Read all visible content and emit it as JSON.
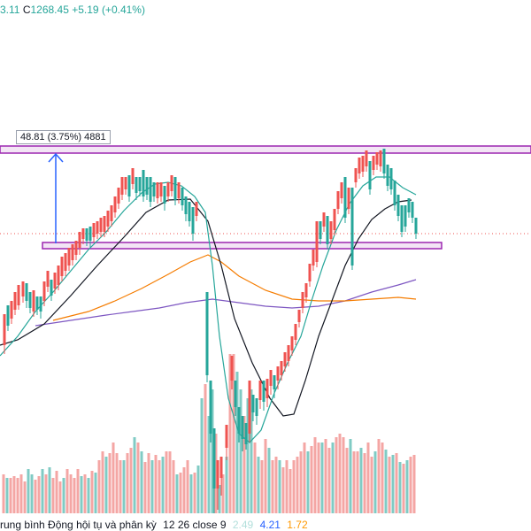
{
  "legend": {
    "open_fragment": "3.11",
    "close_label": "C",
    "close_value": "1268.45",
    "change": "+5.19",
    "change_pct": "(+0.41%)"
  },
  "measure_tooltip": "48.81 (3.75%) 4881",
  "indicator": {
    "name": "rung bình Động hội tụ và phân kỳ",
    "params": "12 26 close 9",
    "values": [
      "2.49",
      "4.21",
      "1.72"
    ],
    "colors": [
      "#b2dfdb",
      "#2962ff",
      "#ff9800"
    ]
  },
  "colors": {
    "up": "#26a69a",
    "down": "#ef5350",
    "zone_border": "#9c27b0",
    "zone_fill": "#f3e5f5",
    "arrow": "#2962ff",
    "ma_fast": "#26a69a",
    "ma_mid": "#131722",
    "ma_long_orange": "#f57c00",
    "ma_long_purple": "#7e57c2"
  },
  "chart_data": {
    "type": "candlestick",
    "candles": [
      [
        5,
        368,
        355,
        390,
        400,
        0
      ],
      [
        9,
        360,
        345,
        368,
        374,
        1
      ],
      [
        13,
        350,
        340,
        360,
        366,
        0
      ],
      [
        17,
        345,
        330,
        350,
        356,
        0
      ],
      [
        21,
        335,
        322,
        345,
        350,
        0
      ],
      [
        26,
        328,
        318,
        335,
        342,
        0
      ],
      [
        30,
        332,
        320,
        340,
        348,
        1
      ],
      [
        34,
        345,
        330,
        348,
        354,
        1
      ],
      [
        38,
        338,
        328,
        352,
        358,
        0
      ],
      [
        42,
        342,
        335,
        350,
        356,
        1
      ],
      [
        46,
        346,
        335,
        352,
        360,
        1
      ],
      [
        50,
        334,
        318,
        340,
        346,
        0
      ],
      [
        54,
        318,
        306,
        324,
        330,
        0
      ],
      [
        58,
        330,
        316,
        334,
        340,
        1
      ],
      [
        62,
        320,
        308,
        326,
        332,
        0
      ],
      [
        66,
        318,
        300,
        322,
        328,
        0
      ],
      [
        70,
        306,
        290,
        312,
        318,
        0
      ],
      [
        74,
        302,
        286,
        306,
        312,
        0
      ],
      [
        78,
        294,
        280,
        300,
        306,
        0
      ],
      [
        82,
        290,
        276,
        294,
        300,
        0
      ],
      [
        86,
        286,
        272,
        288,
        294,
        0
      ],
      [
        90,
        276,
        262,
        280,
        288,
        0
      ],
      [
        94,
        264,
        258,
        270,
        276,
        0
      ],
      [
        98,
        268,
        258,
        272,
        278,
        1
      ],
      [
        102,
        266,
        256,
        272,
        280,
        1
      ],
      [
        106,
        262,
        252,
        268,
        274,
        0
      ],
      [
        110,
        260,
        250,
        264,
        270,
        0
      ],
      [
        114,
        258,
        246,
        262,
        268,
        0
      ],
      [
        118,
        256,
        244,
        262,
        268,
        0
      ],
      [
        122,
        252,
        238,
        256,
        262,
        0
      ],
      [
        126,
        246,
        232,
        250,
        256,
        0
      ],
      [
        130,
        234,
        222,
        240,
        246,
        0
      ],
      [
        134,
        226,
        212,
        230,
        236,
        0
      ],
      [
        138,
        214,
        200,
        220,
        226,
        0
      ],
      [
        142,
        210,
        200,
        214,
        220,
        0
      ],
      [
        146,
        210,
        198,
        222,
        228,
        1
      ],
      [
        150,
        204,
        190,
        208,
        214,
        0
      ],
      [
        154,
        214,
        200,
        218,
        226,
        1
      ],
      [
        158,
        208,
        200,
        216,
        222,
        1
      ],
      [
        162,
        204,
        192,
        222,
        228,
        1
      ],
      [
        166,
        214,
        200,
        220,
        226,
        1
      ],
      [
        170,
        210,
        200,
        228,
        234,
        1
      ],
      [
        174,
        214,
        206,
        222,
        228,
        1
      ],
      [
        178,
        220,
        206,
        224,
        230,
        0
      ],
      [
        182,
        216,
        206,
        222,
        228,
        0
      ],
      [
        186,
        222,
        210,
        230,
        238,
        1
      ],
      [
        190,
        218,
        206,
        222,
        228,
        0
      ],
      [
        194,
        210,
        198,
        216,
        222,
        0
      ],
      [
        198,
        212,
        200,
        226,
        232,
        1
      ],
      [
        202,
        218,
        206,
        224,
        230,
        0
      ],
      [
        206,
        222,
        212,
        232,
        238,
        1
      ],
      [
        210,
        230,
        222,
        242,
        250,
        1
      ],
      [
        214,
        236,
        228,
        250,
        256,
        1
      ],
      [
        218,
        244,
        234,
        264,
        272,
        1
      ],
      [
        222,
        240,
        228,
        244,
        250,
        0
      ],
      [
        234,
        336,
        330,
        424,
        432,
        1
      ],
      [
        238,
        436,
        430,
        490,
        500,
        1
      ],
      [
        242,
        490,
        484,
        552,
        580,
        1
      ],
      [
        246,
        530,
        520,
        552,
        576,
        0
      ],
      [
        250,
        524,
        516,
        540,
        560,
        0
      ],
      [
        256,
        490,
        480,
        506,
        520,
        0
      ],
      [
        262,
        420,
        402,
        430,
        440,
        0
      ],
      [
        266,
        440,
        430,
        460,
        470,
        1
      ],
      [
        270,
        470,
        460,
        490,
        500,
        1
      ],
      [
        274,
        480,
        470,
        496,
        510,
        1
      ],
      [
        278,
        488,
        478,
        502,
        508,
        1
      ],
      [
        282,
        440,
        430,
        490,
        500,
        0
      ],
      [
        286,
        456,
        446,
        466,
        476,
        1
      ],
      [
        290,
        460,
        450,
        470,
        480,
        1
      ],
      [
        294,
        440,
        430,
        452,
        462,
        0
      ],
      [
        298,
        440,
        430,
        454,
        464,
        1
      ],
      [
        302,
        438,
        428,
        450,
        460,
        0
      ],
      [
        306,
        430,
        418,
        436,
        446,
        0
      ],
      [
        310,
        434,
        424,
        440,
        450,
        1
      ],
      [
        314,
        424,
        414,
        430,
        440,
        0
      ],
      [
        318,
        420,
        408,
        424,
        430,
        0
      ],
      [
        322,
        410,
        398,
        414,
        420,
        0
      ],
      [
        326,
        404,
        390,
        408,
        414,
        0
      ],
      [
        330,
        390,
        380,
        396,
        402,
        0
      ],
      [
        334,
        376,
        366,
        384,
        390,
        0
      ],
      [
        338,
        358,
        350,
        364,
        370,
        0
      ],
      [
        342,
        340,
        330,
        348,
        354,
        0
      ],
      [
        346,
        330,
        320,
        336,
        342,
        0
      ],
      [
        350,
        310,
        298,
        318,
        324,
        0
      ],
      [
        354,
        294,
        282,
        300,
        306,
        0
      ],
      [
        358,
        260,
        250,
        296,
        302,
        0
      ],
      [
        362,
        258,
        250,
        270,
        276,
        1
      ],
      [
        366,
        248,
        240,
        256,
        262,
        0
      ],
      [
        370,
        252,
        244,
        276,
        282,
        1
      ],
      [
        374,
        262,
        250,
        270,
        276,
        0
      ],
      [
        378,
        248,
        236,
        260,
        266,
        0
      ],
      [
        382,
        230,
        216,
        236,
        242,
        0
      ],
      [
        386,
        216,
        206,
        224,
        230,
        0
      ],
      [
        390,
        210,
        200,
        246,
        252,
        1
      ],
      [
        394,
        222,
        212,
        236,
        242,
        0
      ],
      [
        398,
        222,
        212,
        300,
        305,
        1
      ],
      [
        402,
        200,
        190,
        206,
        212,
        0
      ],
      [
        406,
        190,
        178,
        196,
        202,
        0
      ],
      [
        410,
        186,
        176,
        194,
        200,
        0
      ],
      [
        414,
        182,
        170,
        188,
        194,
        0
      ],
      [
        418,
        192,
        182,
        214,
        220,
        1
      ],
      [
        422,
        186,
        176,
        192,
        198,
        0
      ],
      [
        426,
        182,
        172,
        186,
        192,
        0
      ],
      [
        430,
        178,
        170,
        188,
        194,
        0
      ],
      [
        434,
        176,
        168,
        196,
        202,
        1
      ],
      [
        438,
        196,
        186,
        210,
        216,
        1
      ],
      [
        442,
        200,
        190,
        214,
        220,
        1
      ],
      [
        446,
        214,
        204,
        232,
        238,
        1
      ],
      [
        450,
        230,
        220,
        244,
        250,
        1
      ],
      [
        454,
        244,
        232,
        262,
        268,
        1
      ],
      [
        458,
        244,
        232,
        256,
        262,
        1
      ],
      [
        462,
        232,
        224,
        240,
        246,
        1
      ],
      [
        466,
        238,
        228,
        246,
        252,
        1
      ],
      [
        470,
        254,
        246,
        264,
        270,
        1
      ]
    ],
    "volume": [
      [
        4,
        536,
        0
      ],
      [
        8,
        540,
        1
      ],
      [
        12,
        540,
        0
      ],
      [
        16,
        538,
        0
      ],
      [
        20,
        540,
        0
      ],
      [
        24,
        536,
        0
      ],
      [
        28,
        544,
        0
      ],
      [
        32,
        530,
        1
      ],
      [
        36,
        536,
        1
      ],
      [
        40,
        542,
        0
      ],
      [
        44,
        538,
        0
      ],
      [
        48,
        530,
        1
      ],
      [
        52,
        536,
        0
      ],
      [
        56,
        528,
        1
      ],
      [
        60,
        540,
        0
      ],
      [
        64,
        532,
        0
      ],
      [
        68,
        544,
        0
      ],
      [
        72,
        540,
        1
      ],
      [
        76,
        530,
        0
      ],
      [
        80,
        536,
        0
      ],
      [
        84,
        540,
        0
      ],
      [
        88,
        530,
        0
      ],
      [
        92,
        538,
        1
      ],
      [
        96,
        536,
        0
      ],
      [
        100,
        540,
        1
      ],
      [
        104,
        532,
        0
      ],
      [
        108,
        534,
        1
      ],
      [
        112,
        520,
        0
      ],
      [
        116,
        510,
        0
      ],
      [
        120,
        516,
        1
      ],
      [
        124,
        512,
        0
      ],
      [
        128,
        500,
        0
      ],
      [
        132,
        512,
        0
      ],
      [
        136,
        520,
        0
      ],
      [
        140,
        520,
        1
      ],
      [
        144,
        512,
        0
      ],
      [
        148,
        506,
        0
      ],
      [
        152,
        494,
        1
      ],
      [
        156,
        500,
        0
      ],
      [
        160,
        510,
        1
      ],
      [
        164,
        522,
        0
      ],
      [
        168,
        512,
        0
      ],
      [
        172,
        520,
        1
      ],
      [
        176,
        514,
        0
      ],
      [
        180,
        520,
        0
      ],
      [
        184,
        516,
        1
      ],
      [
        188,
        510,
        0
      ],
      [
        192,
        510,
        0
      ],
      [
        196,
        520,
        0
      ],
      [
        200,
        536,
        1
      ],
      [
        204,
        534,
        0
      ],
      [
        208,
        528,
        0
      ],
      [
        212,
        520,
        0
      ],
      [
        216,
        536,
        1
      ],
      [
        220,
        534,
        0
      ],
      [
        224,
        526,
        1
      ],
      [
        228,
        450,
        1
      ],
      [
        232,
        434,
        0
      ],
      [
        236,
        470,
        1
      ],
      [
        240,
        440,
        1
      ],
      [
        244,
        490,
        0
      ],
      [
        248,
        548,
        1
      ],
      [
        252,
        536,
        0
      ],
      [
        256,
        516,
        1
      ],
      [
        260,
        400,
        0
      ],
      [
        264,
        400,
        0
      ],
      [
        268,
        420,
        1
      ],
      [
        272,
        440,
        1
      ],
      [
        276,
        470,
        0
      ],
      [
        280,
        450,
        1
      ],
      [
        284,
        440,
        1
      ],
      [
        288,
        500,
        0
      ],
      [
        292,
        516,
        1
      ],
      [
        296,
        520,
        0
      ],
      [
        300,
        496,
        0
      ],
      [
        304,
        506,
        1
      ],
      [
        308,
        520,
        0
      ],
      [
        312,
        516,
        0
      ],
      [
        316,
        520,
        1
      ],
      [
        320,
        528,
        0
      ],
      [
        324,
        520,
        0
      ],
      [
        328,
        530,
        0
      ],
      [
        332,
        520,
        0
      ],
      [
        336,
        516,
        0
      ],
      [
        340,
        510,
        0
      ],
      [
        344,
        500,
        0
      ],
      [
        348,
        510,
        1
      ],
      [
        352,
        504,
        0
      ],
      [
        356,
        494,
        0
      ],
      [
        360,
        500,
        0
      ],
      [
        364,
        500,
        1
      ],
      [
        368,
        496,
        0
      ],
      [
        372,
        506,
        0
      ],
      [
        376,
        500,
        1
      ],
      [
        380,
        494,
        0
      ],
      [
        384,
        490,
        0
      ],
      [
        388,
        494,
        0
      ],
      [
        392,
        506,
        0
      ],
      [
        396,
        496,
        1
      ],
      [
        400,
        510,
        0
      ],
      [
        404,
        510,
        0
      ],
      [
        408,
        506,
        1
      ],
      [
        412,
        512,
        0
      ],
      [
        416,
        500,
        0
      ],
      [
        420,
        516,
        0
      ],
      [
        424,
        510,
        1
      ],
      [
        428,
        496,
        0
      ],
      [
        432,
        500,
        0
      ],
      [
        436,
        508,
        1
      ],
      [
        440,
        516,
        0
      ],
      [
        444,
        514,
        1
      ],
      [
        448,
        512,
        0
      ],
      [
        452,
        522,
        1
      ],
      [
        456,
        524,
        0
      ],
      [
        460,
        520,
        1
      ],
      [
        464,
        516,
        0
      ],
      [
        468,
        514,
        0
      ]
    ]
  }
}
